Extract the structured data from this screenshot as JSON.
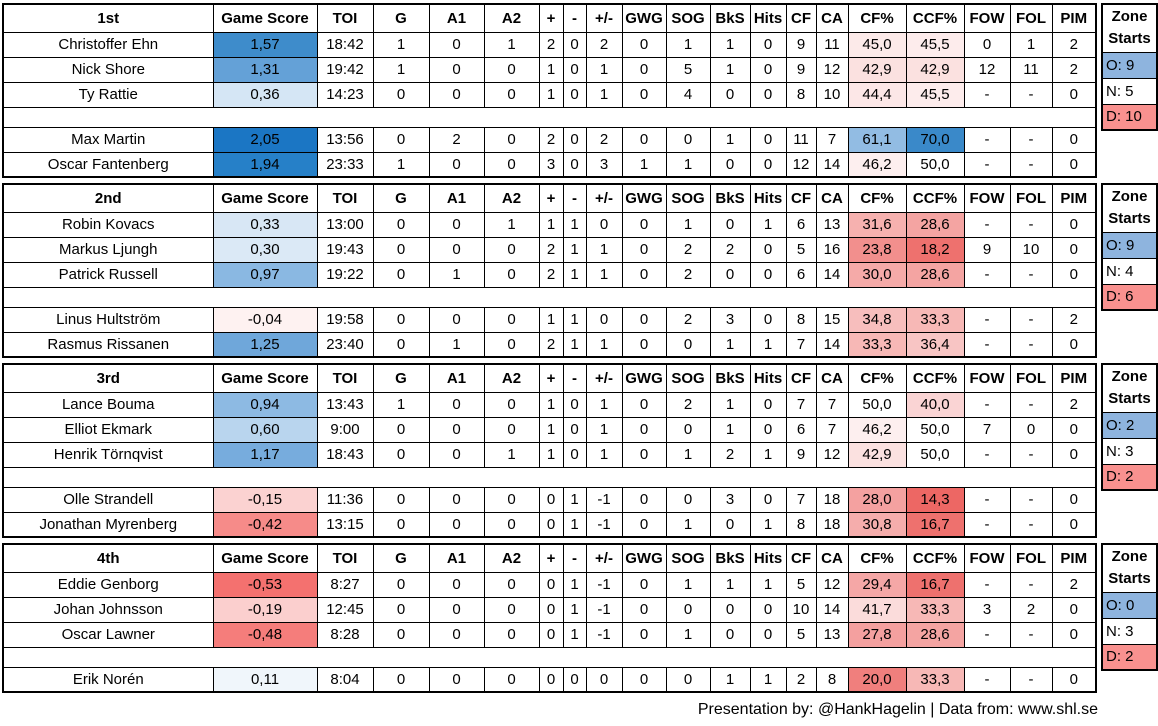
{
  "columns": [
    "Game Score",
    "TOI",
    "G",
    "A1",
    "A2",
    "+",
    "-",
    "+/-",
    "GWG",
    "SOG",
    "BkS",
    "Hits",
    "CF",
    "CA",
    "CF%",
    "CCF%",
    "FOW",
    "FOL",
    "PIM"
  ],
  "zone_header": [
    "Zone",
    "Starts"
  ],
  "footer": "Presentation by: @HankHagelin | Data from: www.shl.se",
  "colors": {
    "zone_offensive": "#8EB4DE",
    "zone_defensive": "#F9918F",
    "border": "#000000",
    "gamescore_max_blue": "#1B76C4",
    "gamescore_min_red": "#F4716F"
  },
  "sections": [
    {
      "label": "1st",
      "zone": {
        "o": "O: 9",
        "n": "N: 5",
        "d": "D: 10"
      },
      "rows": [
        {
          "name": "Christoffer Ehn",
          "cells": [
            "1,57",
            "18:42",
            "1",
            "0",
            "1",
            "2",
            "0",
            "2",
            "0",
            "1",
            "1",
            "0",
            "9",
            "11",
            "45,0",
            "45,5",
            "0",
            "1",
            "2"
          ],
          "bg": {
            "0": "#3E8CCB",
            "14": "#FCEAE9",
            "15": "#FDECEC"
          }
        },
        {
          "name": "Nick Shore",
          "cells": [
            "1,31",
            "19:42",
            "1",
            "0",
            "0",
            "1",
            "0",
            "1",
            "0",
            "5",
            "1",
            "0",
            "9",
            "12",
            "42,9",
            "42,9",
            "12",
            "11",
            "2"
          ],
          "bg": {
            "0": "#64A1D7",
            "14": "#FBE1E0",
            "15": "#FBE1E0"
          }
        },
        {
          "name": "Ty Rattie",
          "cells": [
            "0,36",
            "14:23",
            "0",
            "0",
            "0",
            "1",
            "0",
            "1",
            "0",
            "4",
            "0",
            "0",
            "8",
            "10",
            "44,4",
            "45,5",
            "-",
            "-",
            "0"
          ],
          "bg": {
            "0": "#D5E6F5",
            "14": "#FCE7E7",
            "15": "#FDECEC"
          }
        },
        {
          "empty": true
        },
        {
          "name": "Max Martin",
          "cells": [
            "2,05",
            "13:56",
            "0",
            "2",
            "0",
            "2",
            "0",
            "2",
            "0",
            "0",
            "1",
            "0",
            "11",
            "7",
            "61,1",
            "70,0",
            "-",
            "-",
            "0"
          ],
          "bg": {
            "0": "#1B76C4",
            "14": "#92BCE3",
            "15": "#3A89C9"
          }
        },
        {
          "name": "Oscar Fantenberg",
          "cells": [
            "1,94",
            "23:33",
            "1",
            "0",
            "0",
            "3",
            "0",
            "3",
            "1",
            "1",
            "0",
            "0",
            "12",
            "14",
            "46,2",
            "50,0",
            "-",
            "-",
            "0"
          ],
          "bg": {
            "0": "#2680C8",
            "14": "#FDEFEF"
          }
        }
      ]
    },
    {
      "label": "2nd",
      "zone": {
        "o": "O: 9",
        "n": "N: 4",
        "d": "D: 6"
      },
      "rows": [
        {
          "name": "Robin Kovacs",
          "cells": [
            "0,33",
            "13:00",
            "0",
            "0",
            "1",
            "1",
            "1",
            "0",
            "0",
            "1",
            "0",
            "1",
            "6",
            "13",
            "31,6",
            "28,6",
            "-",
            "-",
            "0"
          ],
          "bg": {
            "0": "#D8E7F5",
            "14": "#F6B1AF",
            "15": "#F4A4A2"
          }
        },
        {
          "name": "Markus Ljungh",
          "cells": [
            "0,30",
            "19:43",
            "0",
            "0",
            "0",
            "2",
            "1",
            "1",
            "0",
            "2",
            "2",
            "0",
            "5",
            "16",
            "23,8",
            "18,2",
            "9",
            "10",
            "0"
          ],
          "bg": {
            "0": "#DBE9F6",
            "14": "#F28F8D",
            "15": "#EE716E"
          }
        },
        {
          "name": "Patrick Russell",
          "cells": [
            "0,97",
            "19:22",
            "0",
            "1",
            "0",
            "2",
            "1",
            "1",
            "0",
            "2",
            "0",
            "0",
            "6",
            "14",
            "30,0",
            "28,6",
            "-",
            "-",
            "0"
          ],
          "bg": {
            "0": "#8AB8E2",
            "14": "#F5AAA8",
            "15": "#F4A4A2"
          }
        },
        {
          "empty": true
        },
        {
          "name": "Linus Hultström",
          "cells": [
            "-0,04",
            "19:58",
            "0",
            "0",
            "0",
            "1",
            "1",
            "0",
            "0",
            "2",
            "3",
            "0",
            "8",
            "15",
            "34,8",
            "33,3",
            "-",
            "-",
            "2"
          ],
          "bg": {
            "0": "#FEF2F1",
            "14": "#F7BEBD",
            "15": "#F7B8B6"
          }
        },
        {
          "name": "Rasmus Rissanen",
          "cells": [
            "1,25",
            "23:40",
            "0",
            "1",
            "0",
            "2",
            "1",
            "1",
            "0",
            "0",
            "1",
            "1",
            "7",
            "14",
            "33,3",
            "36,4",
            "-",
            "-",
            "0"
          ],
          "bg": {
            "0": "#6FA7DA",
            "14": "#F7B8B6",
            "15": "#F8C5C4"
          }
        }
      ]
    },
    {
      "label": "3rd",
      "zone": {
        "o": "O: 2",
        "n": "N: 3",
        "d": "D: 2"
      },
      "rows": [
        {
          "name": "Lance Bouma",
          "cells": [
            "0,94",
            "13:43",
            "1",
            "0",
            "0",
            "1",
            "0",
            "1",
            "0",
            "2",
            "1",
            "0",
            "7",
            "7",
            "50,0",
            "40,0",
            "-",
            "-",
            "2"
          ],
          "bg": {
            "0": "#8DBAE3",
            "15": "#FAD4D4"
          }
        },
        {
          "name": "Elliot Ekmark",
          "cells": [
            "0,60",
            "9:00",
            "0",
            "0",
            "0",
            "1",
            "0",
            "1",
            "0",
            "0",
            "1",
            "0",
            "6",
            "7",
            "46,2",
            "50,0",
            "7",
            "0",
            "0"
          ],
          "bg": {
            "0": "#B9D5EE",
            "14": "#FDEFEF"
          }
        },
        {
          "name": "Henrik Törnqvist",
          "cells": [
            "1,17",
            "18:43",
            "0",
            "0",
            "1",
            "1",
            "0",
            "1",
            "0",
            "1",
            "2",
            "1",
            "9",
            "12",
            "42,9",
            "50,0",
            "-",
            "-",
            "0"
          ],
          "bg": {
            "0": "#77ACDD",
            "14": "#FBE1E0"
          }
        },
        {
          "empty": true
        },
        {
          "name": "Olle Strandell",
          "cells": [
            "-0,15",
            "11:36",
            "0",
            "0",
            "0",
            "0",
            "1",
            "-1",
            "0",
            "0",
            "3",
            "0",
            "7",
            "18",
            "28,0",
            "14,3",
            "-",
            "-",
            "0"
          ],
          "bg": {
            "0": "#FBD2D1",
            "14": "#F4A1A0",
            "15": "#ED6764"
          }
        },
        {
          "name": "Jonathan Myrenberg",
          "cells": [
            "-0,42",
            "13:15",
            "0",
            "0",
            "0",
            "0",
            "1",
            "-1",
            "0",
            "1",
            "0",
            "1",
            "8",
            "18",
            "30,8",
            "16,7",
            "-",
            "-",
            "0"
          ],
          "bg": {
            "0": "#F68B89",
            "14": "#F5ADAC",
            "15": "#EE716E"
          }
        }
      ]
    },
    {
      "label": "4th",
      "zone": {
        "o": "O: 0",
        "n": "N: 3",
        "d": "D: 2"
      },
      "rows": [
        {
          "name": "Eddie Genborg",
          "cells": [
            "-0,53",
            "8:27",
            "0",
            "0",
            "0",
            "0",
            "1",
            "-1",
            "0",
            "1",
            "1",
            "1",
            "5",
            "12",
            "29,4",
            "16,7",
            "-",
            "-",
            "2"
          ],
          "bg": {
            "0": "#F4716F",
            "14": "#F5A7A6",
            "15": "#EE716E"
          }
        },
        {
          "name": "Johan Johnsson",
          "cells": [
            "-0,19",
            "12:45",
            "0",
            "0",
            "0",
            "0",
            "1",
            "-1",
            "0",
            "0",
            "0",
            "0",
            "10",
            "14",
            "41,7",
            "33,3",
            "3",
            "2",
            "0"
          ],
          "bg": {
            "0": "#FBCFCE",
            "14": "#FBDCDB",
            "15": "#F7B8B6"
          }
        },
        {
          "name": "Oscar Lawner",
          "cells": [
            "-0,48",
            "8:28",
            "0",
            "0",
            "0",
            "0",
            "1",
            "-1",
            "0",
            "1",
            "0",
            "0",
            "5",
            "13",
            "27,8",
            "28,6",
            "-",
            "-",
            "0"
          ],
          "bg": {
            "0": "#F57D7B",
            "14": "#F4A09F",
            "15": "#F4A4A2"
          }
        },
        {
          "empty": true
        },
        {
          "name": "Erik Norén",
          "cells": [
            "0,11",
            "8:04",
            "0",
            "0",
            "0",
            "0",
            "0",
            "0",
            "0",
            "0",
            "1",
            "1",
            "2",
            "8",
            "20,0",
            "33,3",
            "-",
            "-",
            "0"
          ],
          "bg": {
            "0": "#F0F6FB",
            "14": "#F07F7D",
            "15": "#F7B8B6"
          }
        }
      ]
    }
  ]
}
